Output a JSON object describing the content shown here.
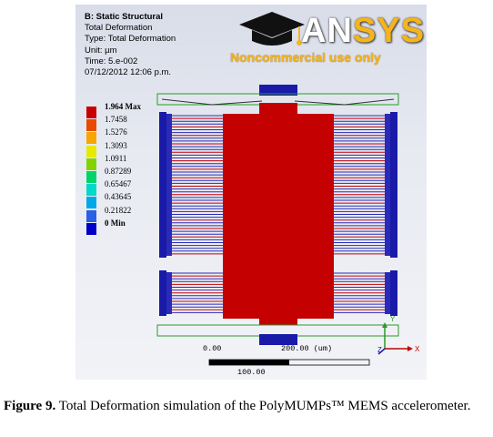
{
  "info": {
    "title": "B: Static Structural",
    "line1": "Total Deformation",
    "line2": "Type: Total Deformation",
    "line3": "Unit: µm",
    "line4": "Time: 5.e-002",
    "line5": "07/12/2012 12:06 p.m."
  },
  "logo": {
    "word_main": "AN",
    "word_accent": "SYS",
    "subtitle": "Noncommercial use only",
    "accent_color": "#f6b41a"
  },
  "legend": {
    "items": [
      {
        "label": "1.964 Max",
        "color": "#c80000",
        "bold": true
      },
      {
        "label": "1.7458",
        "color": "#e84a00",
        "bold": false
      },
      {
        "label": "1.5276",
        "color": "#f7a500",
        "bold": false
      },
      {
        "label": "1.3093",
        "color": "#e8e800",
        "bold": false
      },
      {
        "label": "1.0911",
        "color": "#7fd400",
        "bold": false
      },
      {
        "label": "0.87289",
        "color": "#00d46a",
        "bold": false
      },
      {
        "label": "0.65467",
        "color": "#00d8c8",
        "bold": false
      },
      {
        "label": "0.43645",
        "color": "#00a8e8",
        "bold": false
      },
      {
        "label": "0.21822",
        "color": "#2a5fe8",
        "bold": false
      },
      {
        "label": "0 Min",
        "color": "#0000c8",
        "bold": true
      }
    ]
  },
  "scale": {
    "left_label": "0.00",
    "right_label": "200.00 (um)",
    "mid_label": "100.00"
  },
  "axes": {
    "y": "Y",
    "x": "X",
    "z": "Z"
  },
  "colors": {
    "proof_mass": "#c40000",
    "anchor": "#1a1aa8",
    "frame_green": "#2a9a2a"
  },
  "caption": {
    "figure_label": "Figure 9.",
    "text": " Total Deformation simulation of the PolyMUMPs™ MEMS accelerometer."
  }
}
